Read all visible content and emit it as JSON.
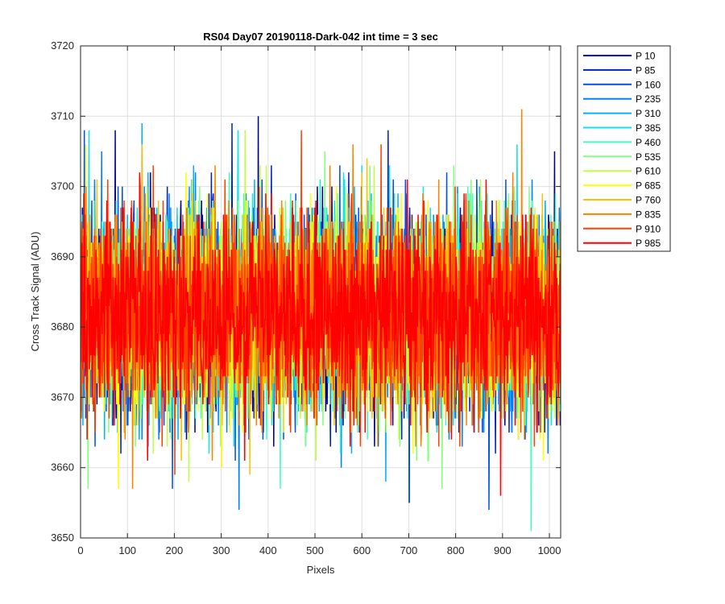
{
  "chart_data": {
    "type": "line",
    "title": "RS04 Day07 20190118-Dark-042 int time = 3 sec",
    "xlabel": "Pixels",
    "ylabel": "Cross Track Signal (ADU)",
    "xlim": [
      0,
      1024
    ],
    "ylim": [
      3650,
      3720
    ],
    "xticks": [
      0,
      100,
      200,
      300,
      400,
      500,
      600,
      700,
      800,
      900,
      1000
    ],
    "yticks": [
      3650,
      3660,
      3670,
      3680,
      3690,
      3700,
      3710,
      3720
    ],
    "grid": true,
    "legend_position": "outside-top-right",
    "n_points": 1024,
    "signal_mean": 3682,
    "signal_sd": 7,
    "series": [
      {
        "name": "P 10",
        "color": "#00008f",
        "mean": 3682,
        "extremes": [
          [
            378,
            3710
          ],
          [
            73,
            3708
          ],
          [
            1010,
            3705
          ],
          [
            700,
            3655
          ]
        ]
      },
      {
        "name": "P 85",
        "color": "#0020c0",
        "mean": 3682,
        "extremes": [
          [
            322,
            3709
          ],
          [
            655,
            3708
          ],
          [
            115,
            3666
          ]
        ]
      },
      {
        "name": "P 160",
        "color": "#0050e8",
        "mean": 3682,
        "extremes": [
          [
            7,
            3708
          ],
          [
            870,
            3654
          ],
          [
            195,
            3657
          ],
          [
            700,
            3655
          ]
        ]
      },
      {
        "name": "P 235",
        "color": "#0080ff",
        "mean": 3682,
        "extremes": [
          [
            44,
            3705
          ],
          [
            337,
            3654
          ],
          [
            555,
            3660
          ]
        ]
      },
      {
        "name": "P 310",
        "color": "#00b0ff",
        "mean": 3682,
        "extremes": [
          [
            130,
            3709
          ],
          [
            650,
            3658
          ],
          [
            990,
            3698
          ]
        ]
      },
      {
        "name": "P 385",
        "color": "#10e0f0",
        "mean": 3682,
        "extremes": [
          [
            335,
            3708
          ],
          [
            930,
            3706
          ],
          [
            17,
            3708
          ]
        ]
      },
      {
        "name": "P 460",
        "color": "#40ffc0",
        "mean": 3682,
        "extremes": [
          [
            960,
            3651
          ],
          [
            425,
            3657
          ]
        ]
      },
      {
        "name": "P 535",
        "color": "#80ff80",
        "mean": 3682,
        "extremes": [
          [
            520,
            3705
          ],
          [
            15,
            3657
          ],
          [
            770,
            3657
          ]
        ]
      },
      {
        "name": "P 610",
        "color": "#c0ff40",
        "mean": 3682,
        "extremes": [
          [
            350,
            3708
          ],
          [
            230,
            3658
          ]
        ]
      },
      {
        "name": "P 685",
        "color": "#ffff00",
        "mean": 3682,
        "extremes": [
          [
            10,
            3706
          ],
          [
            80,
            3657
          ],
          [
            300,
            3660
          ]
        ]
      },
      {
        "name": "P 760",
        "color": "#ffc000",
        "mean": 3682,
        "extremes": [
          [
            130,
            3706
          ],
          [
            360,
            3659
          ],
          [
            610,
            3704
          ]
        ]
      },
      {
        "name": "P 835",
        "color": "#ff8000",
        "mean": 3682,
        "extremes": [
          [
            940,
            3711
          ],
          [
            110,
            3657
          ],
          [
            580,
            3706
          ]
        ]
      },
      {
        "name": "P 910",
        "color": "#ff4000",
        "mean": 3682,
        "extremes": [
          [
            470,
            3708
          ],
          [
            640,
            3706
          ],
          [
            200,
            3659
          ]
        ]
      },
      {
        "name": "P 985",
        "color": "#ff0000",
        "mean": 3682,
        "extremes": [
          [
            895,
            3656
          ],
          [
            150,
            3697
          ],
          [
            760,
            3696
          ]
        ]
      }
    ]
  }
}
